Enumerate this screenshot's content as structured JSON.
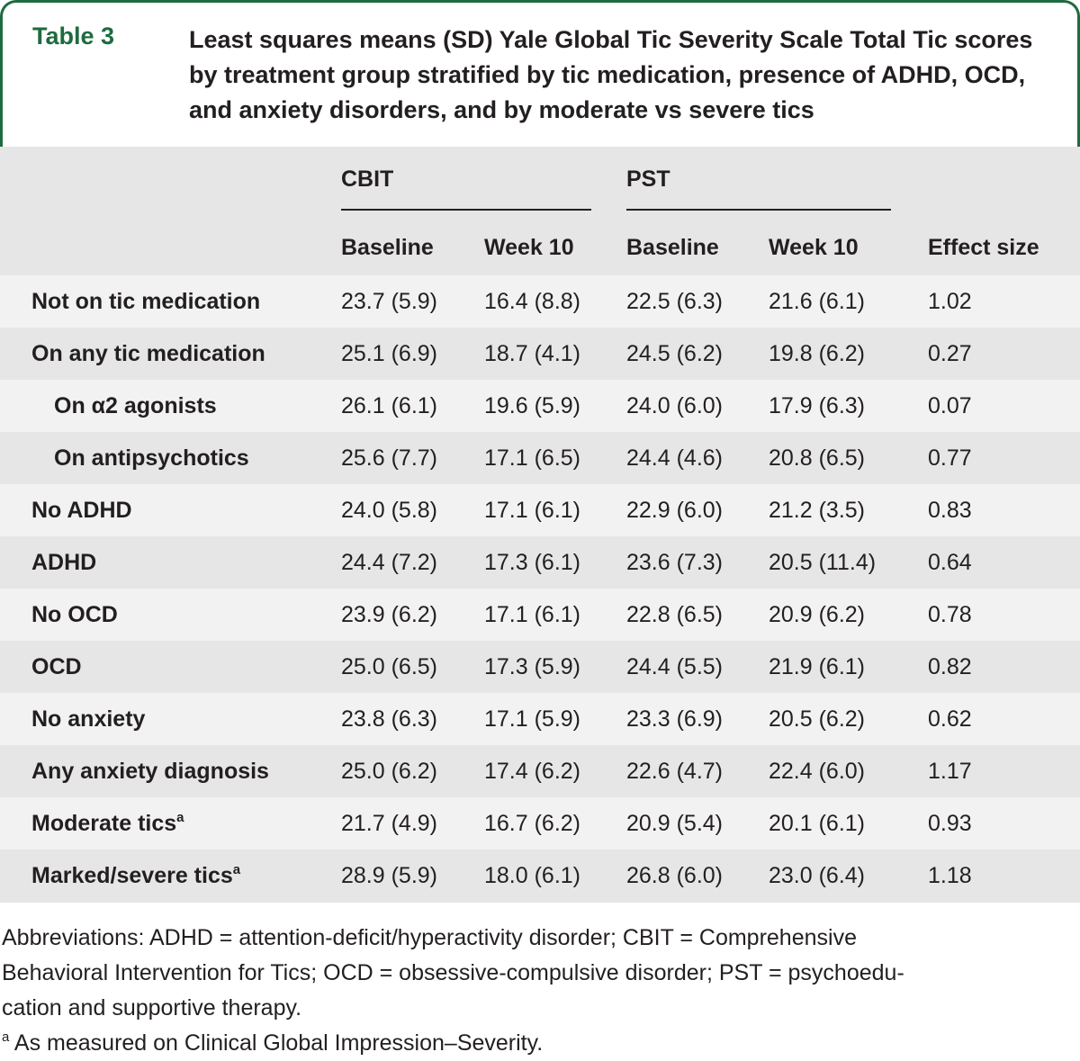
{
  "header": {
    "table_label": "Table 3",
    "title": "Least squares means (SD) Yale Global Tic Severity Scale Total Tic scores by treatment group stratified by tic medication, presence of ADHD, OCD, and anxiety disorders, and by moderate vs severe tics"
  },
  "columns": {
    "group_cbit": "CBIT",
    "group_pst": "PST",
    "cbit_baseline": "Baseline",
    "cbit_week10": "Week 10",
    "pst_baseline": "Baseline",
    "pst_week10": "Week 10",
    "effect_size": "Effect size"
  },
  "rows": [
    {
      "label": "Not on tic medication",
      "cbit_baseline": "23.7 (5.9)",
      "cbit_week10": "16.4 (8.8)",
      "pst_baseline": "22.5 (6.3)",
      "pst_week10": "21.6 (6.1)",
      "effect": "1.02"
    },
    {
      "label": "On any tic medication",
      "cbit_baseline": "25.1 (6.9)",
      "cbit_week10": "18.7 (4.1)",
      "pst_baseline": "24.5 (6.2)",
      "pst_week10": "19.8 (6.2)",
      "effect": "0.27"
    },
    {
      "label": "On α2 agonists",
      "cbit_baseline": "26.1 (6.1)",
      "cbit_week10": "19.6 (5.9)",
      "pst_baseline": "24.0 (6.0)",
      "pst_week10": "17.9 (6.3)",
      "effect": "0.07"
    },
    {
      "label": "On antipsychotics",
      "cbit_baseline": "25.6 (7.7)",
      "cbit_week10": "17.1 (6.5)",
      "pst_baseline": "24.4 (4.6)",
      "pst_week10": "20.8 (6.5)",
      "effect": "0.77"
    },
    {
      "label": "No ADHD",
      "cbit_baseline": "24.0 (5.8)",
      "cbit_week10": "17.1 (6.1)",
      "pst_baseline": "22.9 (6.0)",
      "pst_week10": "21.2 (3.5)",
      "effect": "0.83"
    },
    {
      "label": "ADHD",
      "cbit_baseline": "24.4 (7.2)",
      "cbit_week10": "17.3 (6.1)",
      "pst_baseline": "23.6 (7.3)",
      "pst_week10": "20.5 (11.4)",
      "effect": "0.64"
    },
    {
      "label": "No OCD",
      "cbit_baseline": "23.9 (6.2)",
      "cbit_week10": "17.1 (6.1)",
      "pst_baseline": "22.8 (6.5)",
      "pst_week10": "20.9 (6.2)",
      "effect": "0.78"
    },
    {
      "label": "OCD",
      "cbit_baseline": "25.0 (6.5)",
      "cbit_week10": "17.3 (5.9)",
      "pst_baseline": "24.4 (5.5)",
      "pst_week10": "21.9 (6.1)",
      "effect": "0.82"
    },
    {
      "label": "No anxiety",
      "cbit_baseline": "23.8 (6.3)",
      "cbit_week10": "17.1 (5.9)",
      "pst_baseline": "23.3 (6.9)",
      "pst_week10": "20.5 (6.2)",
      "effect": "0.62"
    },
    {
      "label": "Any anxiety diagnosis",
      "cbit_baseline": "25.0 (6.2)",
      "cbit_week10": "17.4 (6.2)",
      "pst_baseline": "22.6 (4.7)",
      "pst_week10": "22.4 (6.0)",
      "effect": "1.17"
    },
    {
      "label": "Moderate tics",
      "sup": "a",
      "cbit_baseline": "21.7 (4.9)",
      "cbit_week10": "16.7 (6.2)",
      "pst_baseline": "20.9 (5.4)",
      "pst_week10": "20.1 (6.1)",
      "effect": "0.93"
    },
    {
      "label": "Marked/severe tics",
      "sup": "a",
      "cbit_baseline": "28.9 (5.9)",
      "cbit_week10": "18.0 (6.1)",
      "pst_baseline": "26.8 (6.0)",
      "pst_week10": "23.0 (6.4)",
      "effect": "1.18"
    }
  ],
  "footnotes": {
    "abbreviations_1": "Abbreviations: ADHD = attention-deficit/hyperactivity disorder; CBIT = Comprehensive",
    "abbreviations_2": "Behavioral Intervention for Tics; OCD = obsessive-compulsive disorder; PST = psychoedu-",
    "abbreviations_3": "cation and supportive therapy.",
    "note_marker": "a",
    "note_text": "As measured on Clinical Global Impression–Severity."
  },
  "colors": {
    "accent": "#1e6b3f",
    "header_band": "#e6e6e6",
    "row_alt": "#f2f2f2"
  }
}
